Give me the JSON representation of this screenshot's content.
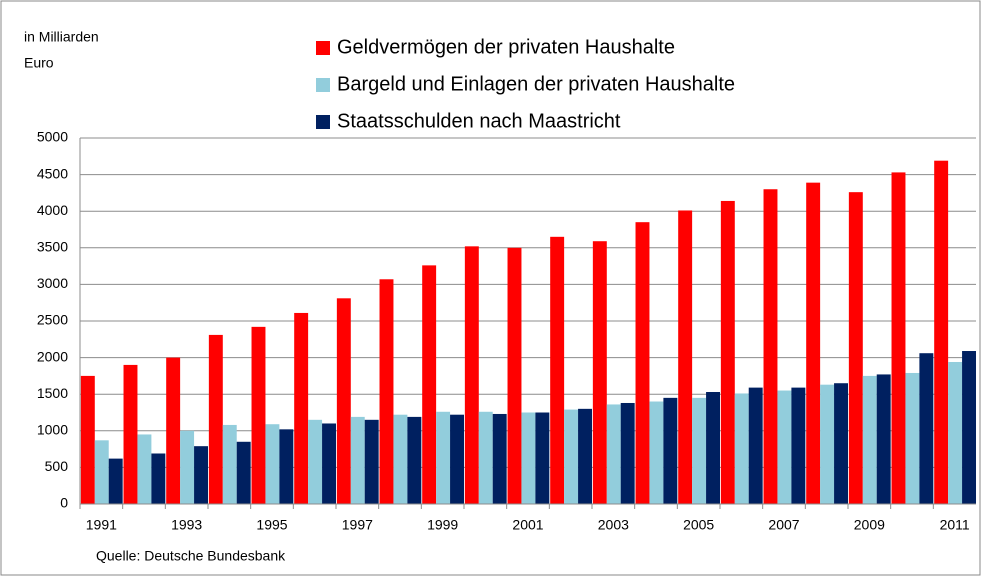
{
  "chart_data": {
    "type": "bar",
    "ylabel": [
      "in  Milliarden",
      "Euro"
    ],
    "source": "Quelle: Deutsche Bundesbank",
    "categories": [
      "1991",
      null,
      "1993",
      null,
      "1995",
      null,
      "1997",
      null,
      "1999",
      null,
      "2001",
      null,
      "2003",
      null,
      "2005",
      null,
      "2007",
      null,
      "2009",
      null,
      "2011"
    ],
    "series": [
      {
        "name": "Geldvermögen der privaten Haushalte",
        "color": "#ff0000",
        "values": [
          1750,
          1900,
          2000,
          2310,
          2420,
          2610,
          2810,
          3070,
          3260,
          3520,
          3500,
          3650,
          3590,
          3850,
          4010,
          4140,
          4300,
          4390,
          4260,
          4530,
          4690
        ]
      },
      {
        "name": "Bargeld und Einlagen der privaten Haushalte",
        "color": "#92cddc",
        "values": [
          870,
          950,
          1000,
          1080,
          1090,
          1150,
          1190,
          1220,
          1260,
          1260,
          1250,
          1290,
          1360,
          1400,
          1450,
          1510,
          1550,
          1630,
          1750,
          1790,
          1940
        ]
      },
      {
        "name": "Staatsschulden nach Maastricht",
        "color": "#002060",
        "values": [
          620,
          690,
          790,
          850,
          1020,
          1100,
          1150,
          1190,
          1220,
          1230,
          1250,
          1300,
          1380,
          1450,
          1530,
          1590,
          1590,
          1650,
          1770,
          2060,
          2090
        ]
      }
    ],
    "ylim": [
      0,
      5000
    ],
    "yticks": [
      0,
      500,
      1000,
      1500,
      2000,
      2500,
      3000,
      3500,
      4000,
      4500,
      5000
    ],
    "grid": true
  }
}
